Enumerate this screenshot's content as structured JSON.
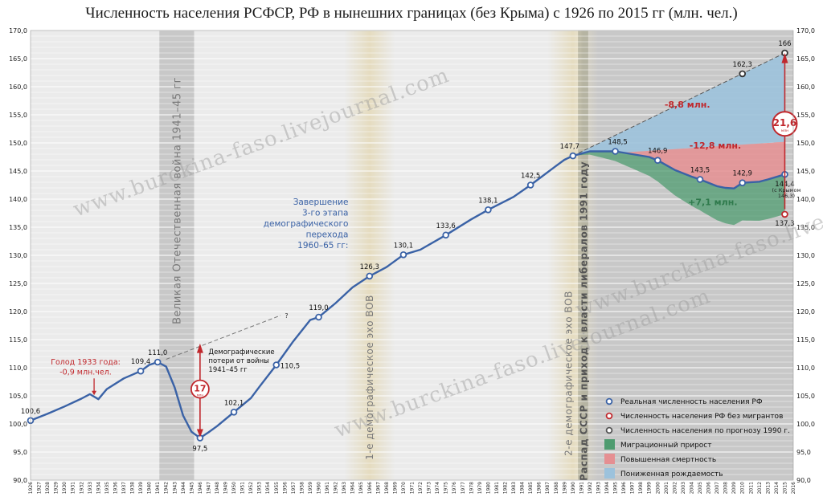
{
  "title": "Численность населения РСФСР, РФ в нынешних границах (без Крыма) с 1926 по 2015 гг (млн. чел.)",
  "watermark": [
    "www.burckina-faso.livejournal.com",
    "www.burckina-faso.livejournal.com",
    "www.burckina-faso.livejournal.com"
  ],
  "colors": {
    "series": "#3a62a6",
    "marker_red": "#c0282d",
    "forecast": "#555555",
    "migration": "#4f9c70",
    "mortality": "#e58f92",
    "birth": "#9cc2dc",
    "shade": "#c8c8c8",
    "echo": "#e5dcc0"
  },
  "annotations": {
    "famine": "Голод 1933 года:",
    "famine_value": "-0,9 млн.чел.",
    "war_losses": [
      "Демографические",
      "потери от войны",
      "1941–45 гг"
    ],
    "war_value": "17",
    "war_unit": "млн",
    "completion": [
      "Завершение",
      "3-го этапа",
      "демографического",
      "перехода",
      "1960–65 гг:"
    ],
    "war_band": "Великая Отечественная война 1941–45 гг",
    "echo1": "1-е демографическое эхо ВОВ",
    "echo2": "2-е демографическое эхо ВОВ",
    "collapse": "Распад СССР и приход к власти либералов 1991 году",
    "question": "?",
    "birth_loss": "-8,8 млн.",
    "mortality_loss": "-12,8 млн.",
    "migration_gain": "+7,1 млн.",
    "total_value": "21,6",
    "total_unit": "млн",
    "crimea_note": [
      "(с Крымом",
      "146,3)"
    ]
  },
  "legend": [
    {
      "label": "Реальная численность населения РФ",
      "kind": "marker",
      "color": "#3a62a6"
    },
    {
      "label": "Численность населения РФ без мигрантов",
      "kind": "marker",
      "color": "#c0282d"
    },
    {
      "label": "Численность населения по прогнозу 1990 г.",
      "kind": "marker",
      "color": "#555555"
    },
    {
      "label": "Миграционный прирост",
      "kind": "swatch",
      "color": "#4f9c70"
    },
    {
      "label": "Повышенная смертность",
      "kind": "swatch",
      "color": "#e58f92"
    },
    {
      "label": "Пониженная рождаемость",
      "kind": "swatch",
      "color": "#9cc2dc"
    }
  ],
  "chart_data": {
    "type": "line",
    "title": "Численность населения РСФСР, РФ в нынешних границах (без Крыма) с 1926 по 2015 гг (млн. чел.)",
    "x_range": [
      1926,
      2016
    ],
    "ylim": [
      90,
      170
    ],
    "y_ticks": [
      "90,0",
      "95,0",
      "100,0",
      "105,0",
      "110,0",
      "115,0",
      "120,0",
      "125,0",
      "130,0",
      "135,0",
      "140,0",
      "145,0",
      "150,0",
      "155,0",
      "160,0",
      "165,0",
      "170,0"
    ],
    "grid": true,
    "series": [
      {
        "name": "Реальная численность населения РФ",
        "x": [
          1926,
          1928,
          1930,
          1932,
          1933,
          1934,
          1935,
          1937,
          1939,
          1940,
          1941,
          1942,
          1943,
          1944,
          1945,
          1946,
          1947,
          1948,
          1950,
          1952,
          1953,
          1955,
          1957,
          1959,
          1960,
          1962,
          1964,
          1966,
          1968,
          1970,
          1972,
          1975,
          1978,
          1980,
          1983,
          1985,
          1988,
          1989,
          1990,
          1991,
          1992,
          1993,
          1995,
          1997,
          1999,
          2000,
          2002,
          2004,
          2005,
          2007,
          2008,
          2009,
          2010,
          2012,
          2013,
          2015
        ],
        "values": [
          100.6,
          101.8,
          103.1,
          104.5,
          105.3,
          104.4,
          106.2,
          108.1,
          109.4,
          110.5,
          111.0,
          110.2,
          106.5,
          101.5,
          98.6,
          97.5,
          98.5,
          99.6,
          102.1,
          104.6,
          106.6,
          110.5,
          114.7,
          118.5,
          119.0,
          121.5,
          124.3,
          126.3,
          127.9,
          130.1,
          131.0,
          133.6,
          136.4,
          138.1,
          140.4,
          142.5,
          145.9,
          147.0,
          147.7,
          148.1,
          148.5,
          148.5,
          148.5,
          148.0,
          147.5,
          146.9,
          145.2,
          144.0,
          143.5,
          142.3,
          142.0,
          141.9,
          142.9,
          143.1,
          143.5,
          144.4
        ],
        "labels": [
          [
            1926,
            "100,6"
          ],
          [
            1939,
            "109,4"
          ],
          [
            1941,
            "111,0"
          ],
          [
            1946,
            "97,5"
          ],
          [
            1950,
            "102,1"
          ],
          [
            1955,
            "110,5"
          ],
          [
            1960,
            "119,0"
          ],
          [
            1966,
            "126,3"
          ],
          [
            1970,
            "130,1"
          ],
          [
            1975,
            "133,6"
          ],
          [
            1980,
            "138,1"
          ],
          [
            1985,
            "142,5"
          ],
          [
            1990,
            "147,7"
          ],
          [
            1995,
            "148,5"
          ],
          [
            2000,
            "146,9"
          ],
          [
            2005,
            "143,5"
          ],
          [
            2010,
            "142,9"
          ],
          [
            2015,
            "144,4"
          ]
        ]
      },
      {
        "name": "Численность населения РФ без мигрантов",
        "x": [
          2015
        ],
        "values": [
          137.3
        ],
        "labels": [
          [
            2015,
            "137,3"
          ]
        ]
      },
      {
        "name": "Численность населения по прогнозу 1990 г.",
        "x": [
          1990,
          2010,
          2015
        ],
        "values": [
          147.7,
          162.3,
          166.0
        ],
        "labels": [
          [
            2010,
            "162,3"
          ],
          [
            2015,
            "166"
          ]
        ]
      }
    ]
  }
}
